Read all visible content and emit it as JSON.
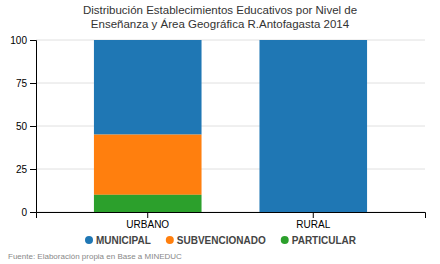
{
  "chart_data": {
    "type": "bar",
    "stacked": true,
    "title": "Distribución Establecimientos Educativos por Nivel de\nEnseñanza y Área Geográfica R.Antofagasta 2014",
    "categories": [
      "URBANO",
      "RURAL"
    ],
    "series": [
      {
        "name": "MUNICIPAL",
        "values": [
          55,
          100
        ]
      },
      {
        "name": "SUBVENCIONADO",
        "values": [
          35,
          0
        ]
      },
      {
        "name": "PARTICULAR",
        "values": [
          10,
          0
        ]
      }
    ],
    "ylim": [
      0,
      100
    ],
    "yticks": [
      0,
      25,
      50,
      75,
      100
    ],
    "grid": true,
    "legend": "bottom",
    "footnote": "Fuente: Elaboración propia en Base a MINEDUC"
  }
}
